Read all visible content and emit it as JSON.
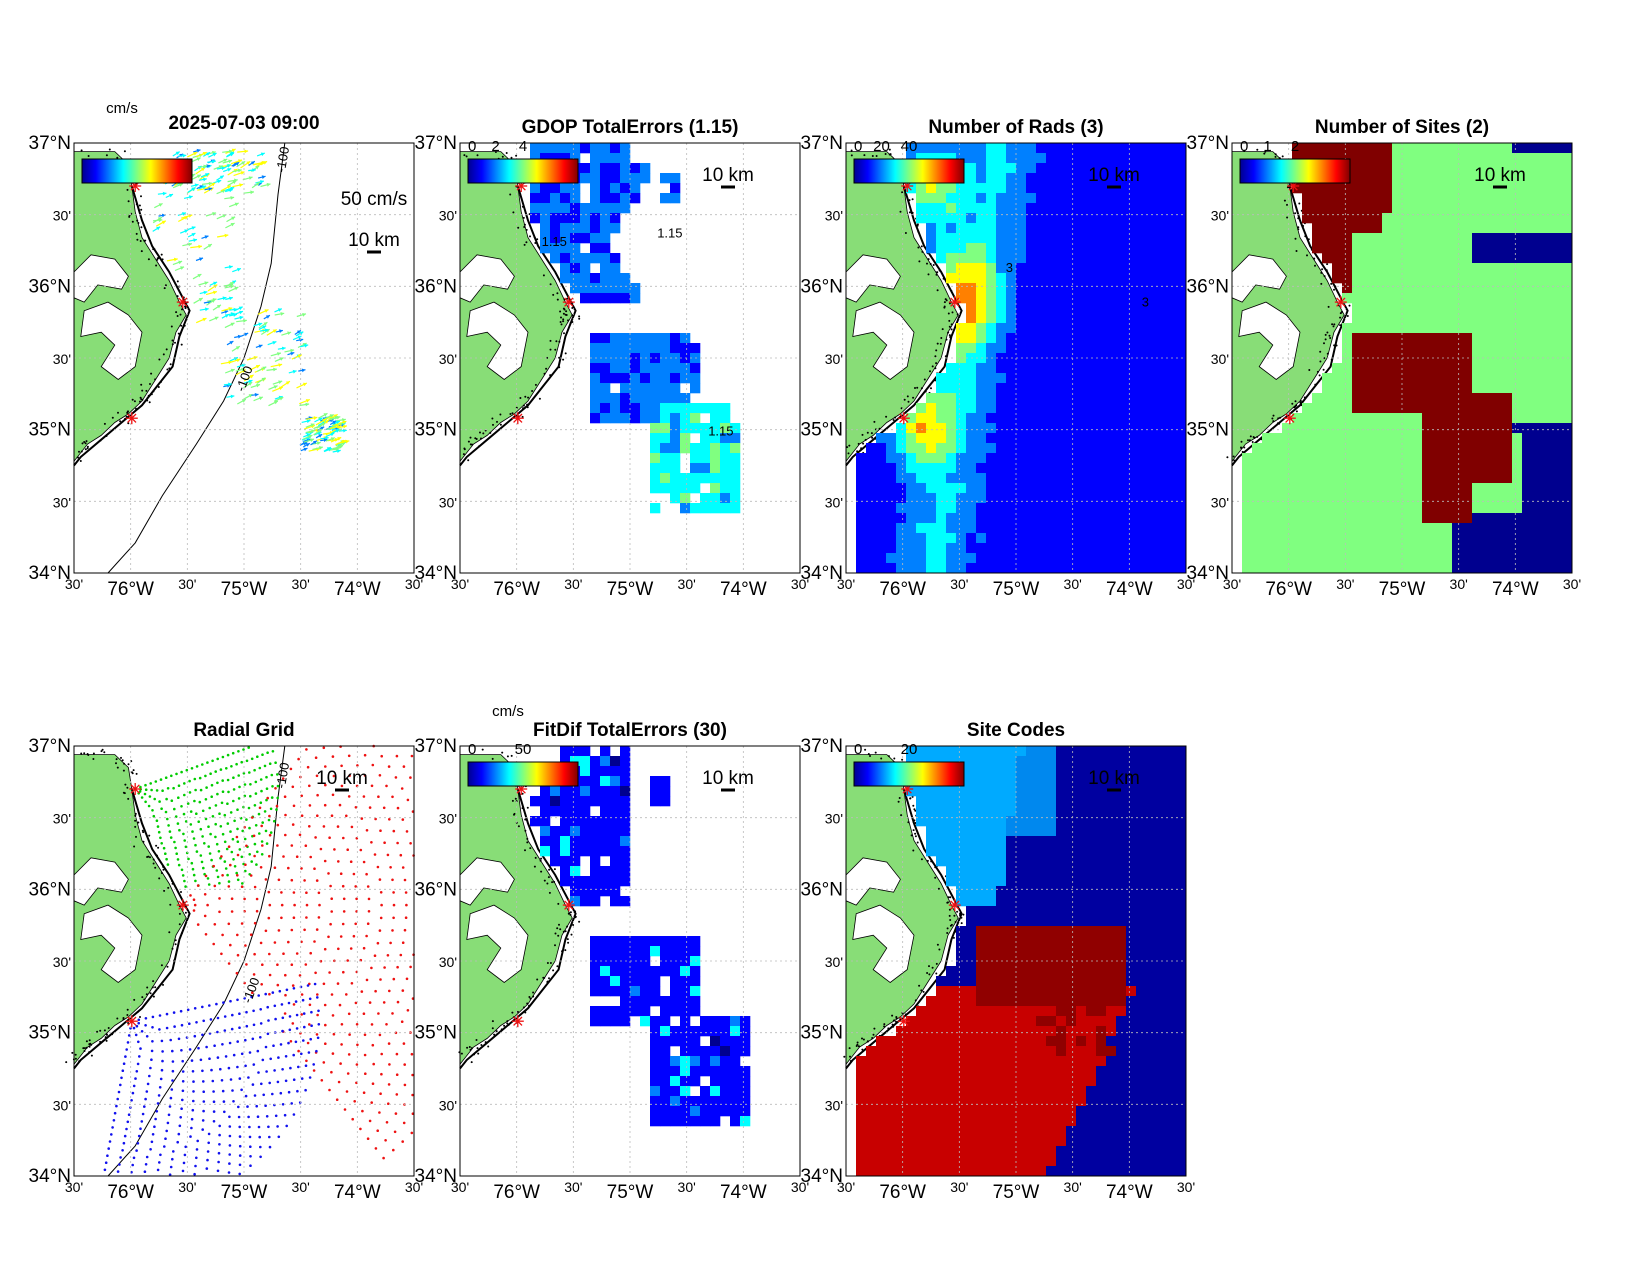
{
  "figure": {
    "axes_common": {
      "lat_ticks": [
        "37°N",
        "30'",
        "36°N",
        "30'",
        "35°N",
        "30'",
        "34°N"
      ],
      "lon_ticks": [
        "30'",
        "76°W",
        "30'",
        "75°W",
        "30'",
        "74°W",
        "30'"
      ],
      "scale_label": "10 km",
      "site_marker": "red-asterisk-icon",
      "land_color": "#88dd77"
    },
    "panels": [
      {
        "id": "currents",
        "title": "2025-07-03 09:00",
        "colorbar_unit": "cm/s",
        "colorbar_ticks": [],
        "vector_scale_label": "50 cm/s",
        "contour_labels": [
          "-100",
          "-100"
        ]
      },
      {
        "id": "gdop",
        "title": "GDOP TotalErrors (1.15)",
        "colorbar_ticks": [
          "0",
          "2",
          "4"
        ],
        "contour_labels": [
          "1.15",
          "1.15",
          "1.15"
        ]
      },
      {
        "id": "nrads",
        "title": "Number of Rads (3)",
        "colorbar_ticks": [
          "0",
          "20",
          "40"
        ],
        "contour_labels": [
          "3",
          "3"
        ]
      },
      {
        "id": "nsites",
        "title": "Number of Sites (2)",
        "colorbar_ticks": [
          "0",
          "1",
          "2"
        ]
      },
      {
        "id": "radgrid",
        "title": "Radial Grid",
        "contour_labels": [
          "-100",
          "-100"
        ],
        "site_colors": [
          "#00cc00",
          "#ee1111",
          "#1111ee"
        ]
      },
      {
        "id": "fitdif",
        "title": "FitDif TotalErrors (30)",
        "colorbar_unit": "cm/s",
        "colorbar_ticks": [
          "0",
          "50"
        ]
      },
      {
        "id": "sitecodes",
        "title": "Site Codes",
        "colorbar_ticks": [
          "0",
          "20"
        ]
      }
    ]
  }
}
